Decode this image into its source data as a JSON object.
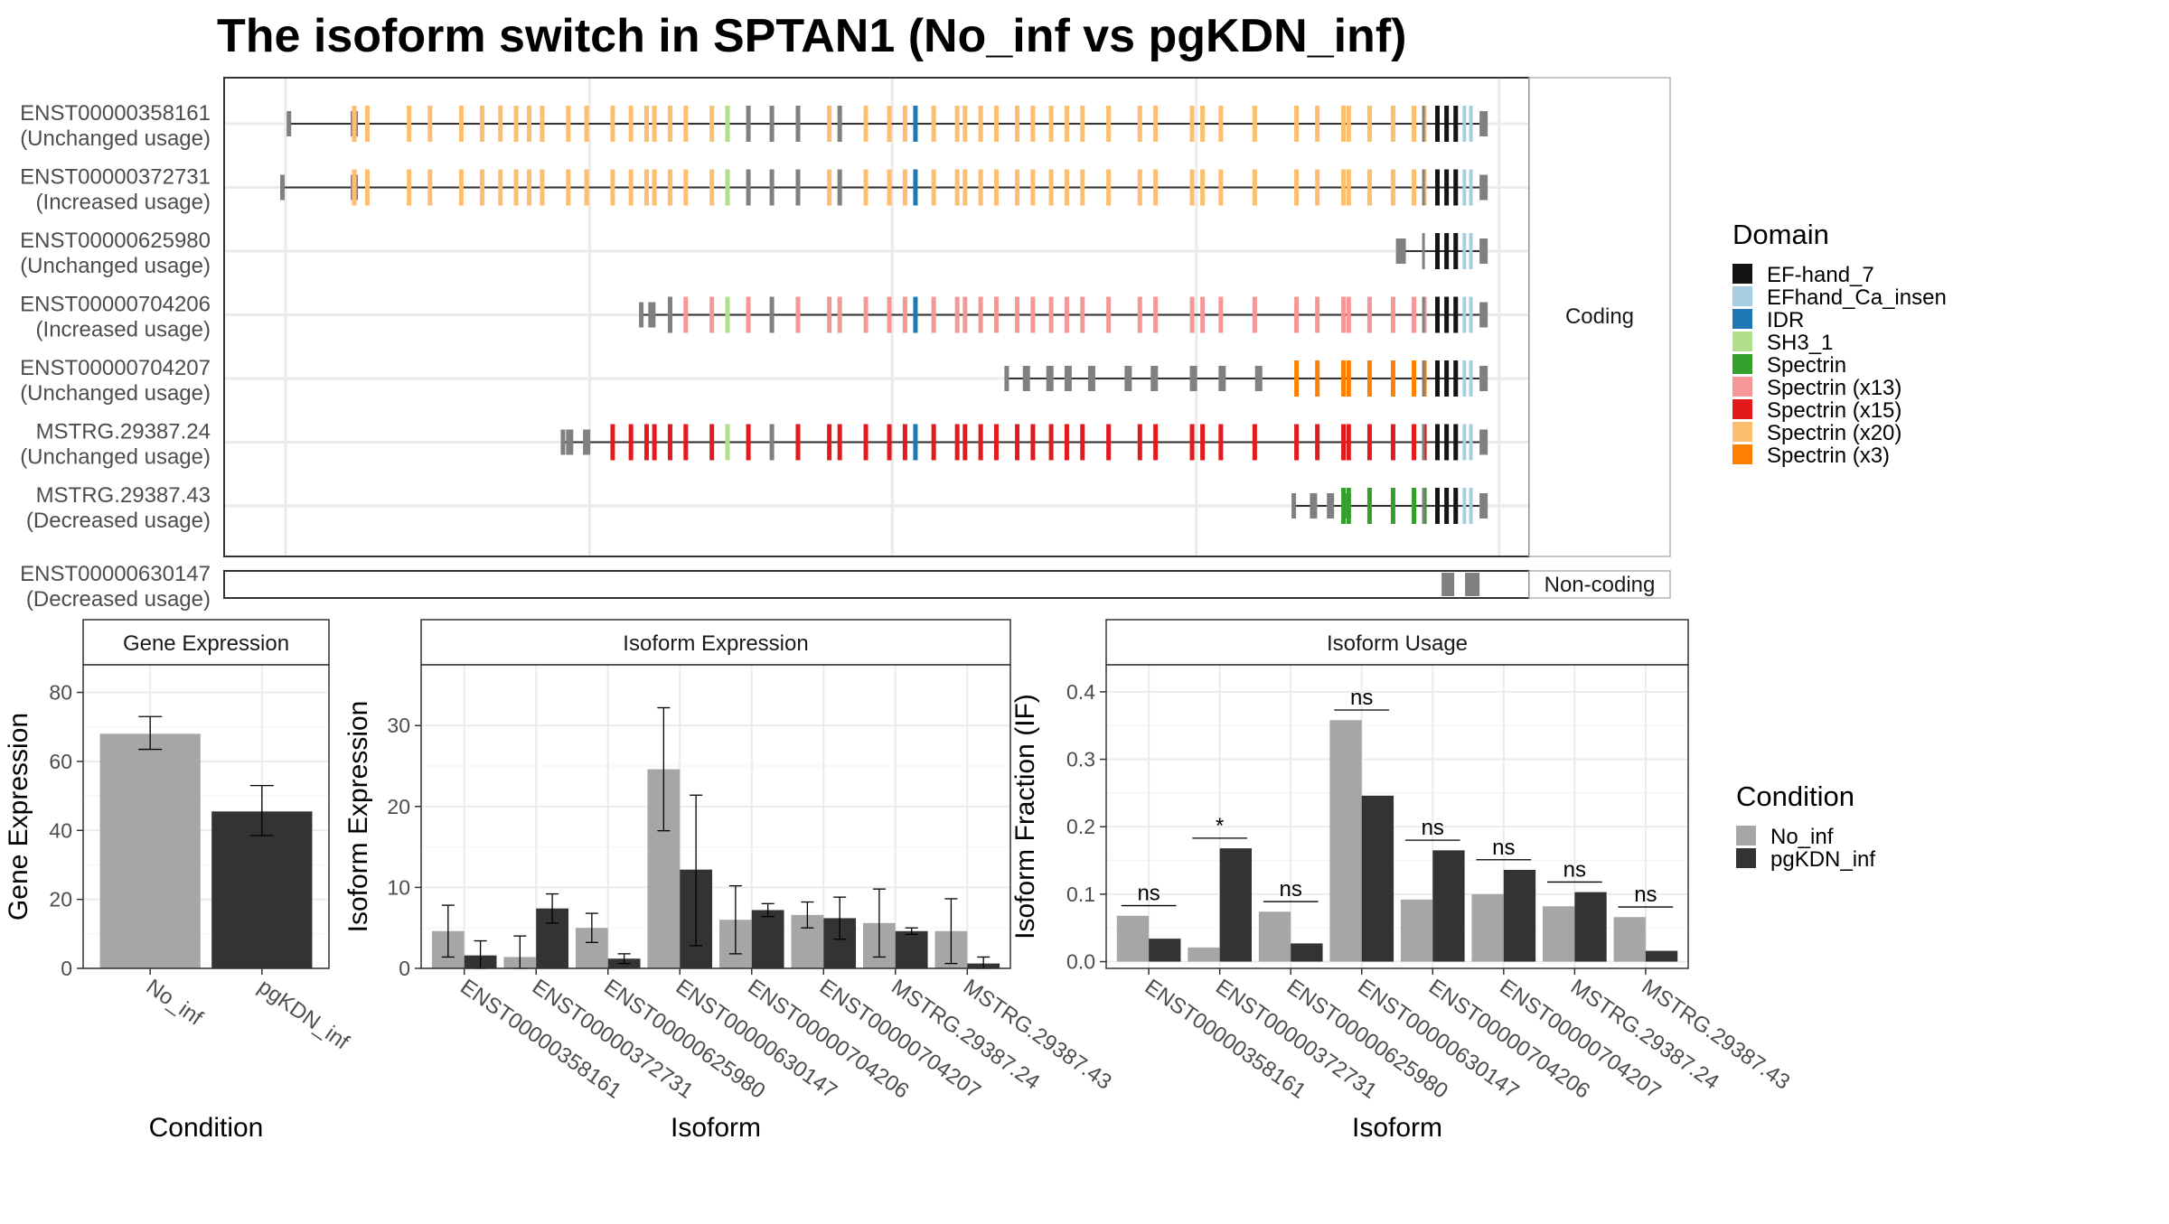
{
  "title": "The isoform switch in SPTAN1 (No_inf vs pgKDN_inf)",
  "colors": {
    "no_inf": "#A6A6A6",
    "pgkdn_inf": "#333333",
    "noncoding_exon": "#808080"
  },
  "structure": {
    "coding_label": "Coding",
    "noncoding_label": "Non-coding",
    "isoforms": [
      {
        "id": "ENST00000358161",
        "usage": "(Unchanged usage)",
        "type": "coding",
        "start": 0.05,
        "first_exon_frac": 0.055
      },
      {
        "id": "ENST00000372731",
        "usage": "(Increased usage)",
        "type": "coding",
        "start": 0.045,
        "first_exon_frac": 0.055
      },
      {
        "id": "ENST00000625980",
        "usage": "(Unchanged usage)",
        "type": "coding",
        "start": 0.9,
        "first_exon_frac": 0.91
      },
      {
        "id": "ENST00000704206",
        "usage": "(Increased usage)",
        "type": "coding",
        "start": 0.32,
        "first_exon_frac": 0.335
      },
      {
        "id": "ENST00000704207",
        "usage": "(Unchanged usage)",
        "type": "coding",
        "start": 0.6,
        "first_exon_frac": 0.63
      },
      {
        "id": "MSTRG.29387.24",
        "usage": "(Unchanged usage)",
        "type": "coding",
        "start": 0.255,
        "first_exon_frac": 0.28
      },
      {
        "id": "MSTRG.29387.43",
        "usage": "(Decreased usage)",
        "type": "coding",
        "start": 0.82,
        "first_exon_frac": 0.85
      }
    ],
    "noncoding_isoforms": [
      {
        "id": "ENST00000630147",
        "usage": "(Decreased usage)",
        "type": "non-coding"
      }
    ]
  },
  "domain_legend": {
    "title": "Domain",
    "items": [
      {
        "label": "EF-hand_7",
        "color": "#141414"
      },
      {
        "label": "EFhand_Ca_insen",
        "color": "#A6CEE3"
      },
      {
        "label": "IDR",
        "color": "#1F78B4"
      },
      {
        "label": "SH3_1",
        "color": "#B2DF8A"
      },
      {
        "label": "Spectrin",
        "color": "#33A02C"
      },
      {
        "label": "Spectrin (x13)",
        "color": "#F59797"
      },
      {
        "label": "Spectrin (x15)",
        "color": "#E31A1C"
      },
      {
        "label": "Spectrin (x20)",
        "color": "#FDBF6F"
      },
      {
        "label": "Spectrin (x3)",
        "color": "#FF7F00"
      }
    ]
  },
  "condition_legend": {
    "title": "Condition",
    "items": [
      {
        "label": "No_inf",
        "color": "#A6A6A6"
      },
      {
        "label": "pgKDN_inf",
        "color": "#333333"
      }
    ]
  },
  "chart_data": [
    {
      "type": "bar",
      "title": "Gene Expression",
      "xlabel": "Condition",
      "ylabel": "Gene Expression",
      "categories": [
        "No_inf",
        "pgKDN_inf"
      ],
      "values": [
        68,
        45.5
      ],
      "error": [
        [
          63.5,
          73
        ],
        [
          38.5,
          53
        ]
      ],
      "ylim": [
        0,
        88
      ],
      "yticks": [
        0,
        20,
        40,
        60,
        80
      ]
    },
    {
      "type": "bar",
      "title": "Isoform Expression",
      "xlabel": "Isoform",
      "ylabel": "Isoform Expression",
      "categories": [
        "ENST00000358161",
        "ENST00000372731",
        "ENST00000625980",
        "ENST00000630147",
        "ENST00000704206",
        "ENST00000704207",
        "MSTRG.29387.24",
        "MSTRG.29387.43"
      ],
      "series": [
        {
          "name": "No_inf",
          "values": [
            4.6,
            1.4,
            5.0,
            24.6,
            6.0,
            6.6,
            5.6,
            4.6
          ],
          "error": [
            [
              1.4,
              7.8
            ],
            [
              0,
              4.0
            ],
            [
              3.2,
              6.8
            ],
            [
              17.0,
              32.2
            ],
            [
              1.8,
              10.2
            ],
            [
              5.0,
              8.2
            ],
            [
              1.4,
              9.8
            ],
            [
              0.6,
              8.6
            ]
          ]
        },
        {
          "name": "pgKDN_inf",
          "values": [
            1.6,
            7.4,
            1.2,
            12.2,
            7.2,
            6.2,
            4.6,
            0.6
          ],
          "error": [
            [
              0,
              3.4
            ],
            [
              5.6,
              9.2
            ],
            [
              0.6,
              1.8
            ],
            [
              2.8,
              21.4
            ],
            [
              6.4,
              8.0
            ],
            [
              3.6,
              8.8
            ],
            [
              4.2,
              5.0
            ],
            [
              0,
              1.4
            ]
          ]
        }
      ],
      "ylim": [
        0,
        37.5
      ],
      "yticks": [
        0,
        10,
        20,
        30
      ]
    },
    {
      "type": "bar",
      "title": "Isoform Usage",
      "xlabel": "Isoform",
      "ylabel": "Isoform Fraction (IF)",
      "categories": [
        "ENST00000358161",
        "ENST00000372731",
        "ENST00000625980",
        "ENST00000630147",
        "ENST00000704206",
        "ENST00000704207",
        "MSTRG.29387.24",
        "MSTRG.29387.43"
      ],
      "series": [
        {
          "name": "No_inf",
          "values": [
            0.068,
            0.021,
            0.074,
            0.358,
            0.092,
            0.1,
            0.082,
            0.066
          ]
        },
        {
          "name": "pgKDN_inf",
          "values": [
            0.034,
            0.168,
            0.027,
            0.246,
            0.165,
            0.136,
            0.103,
            0.016
          ]
        }
      ],
      "significance": [
        "ns",
        "*",
        "ns",
        "ns",
        "ns",
        "ns",
        "ns",
        "ns"
      ],
      "ylim": [
        -0.01,
        0.44
      ],
      "yticks": [
        0.0,
        0.1,
        0.2,
        0.3,
        0.4
      ],
      "ytick_labels": [
        "0.0",
        "0.1",
        "0.2",
        "0.3",
        "0.4"
      ]
    }
  ]
}
